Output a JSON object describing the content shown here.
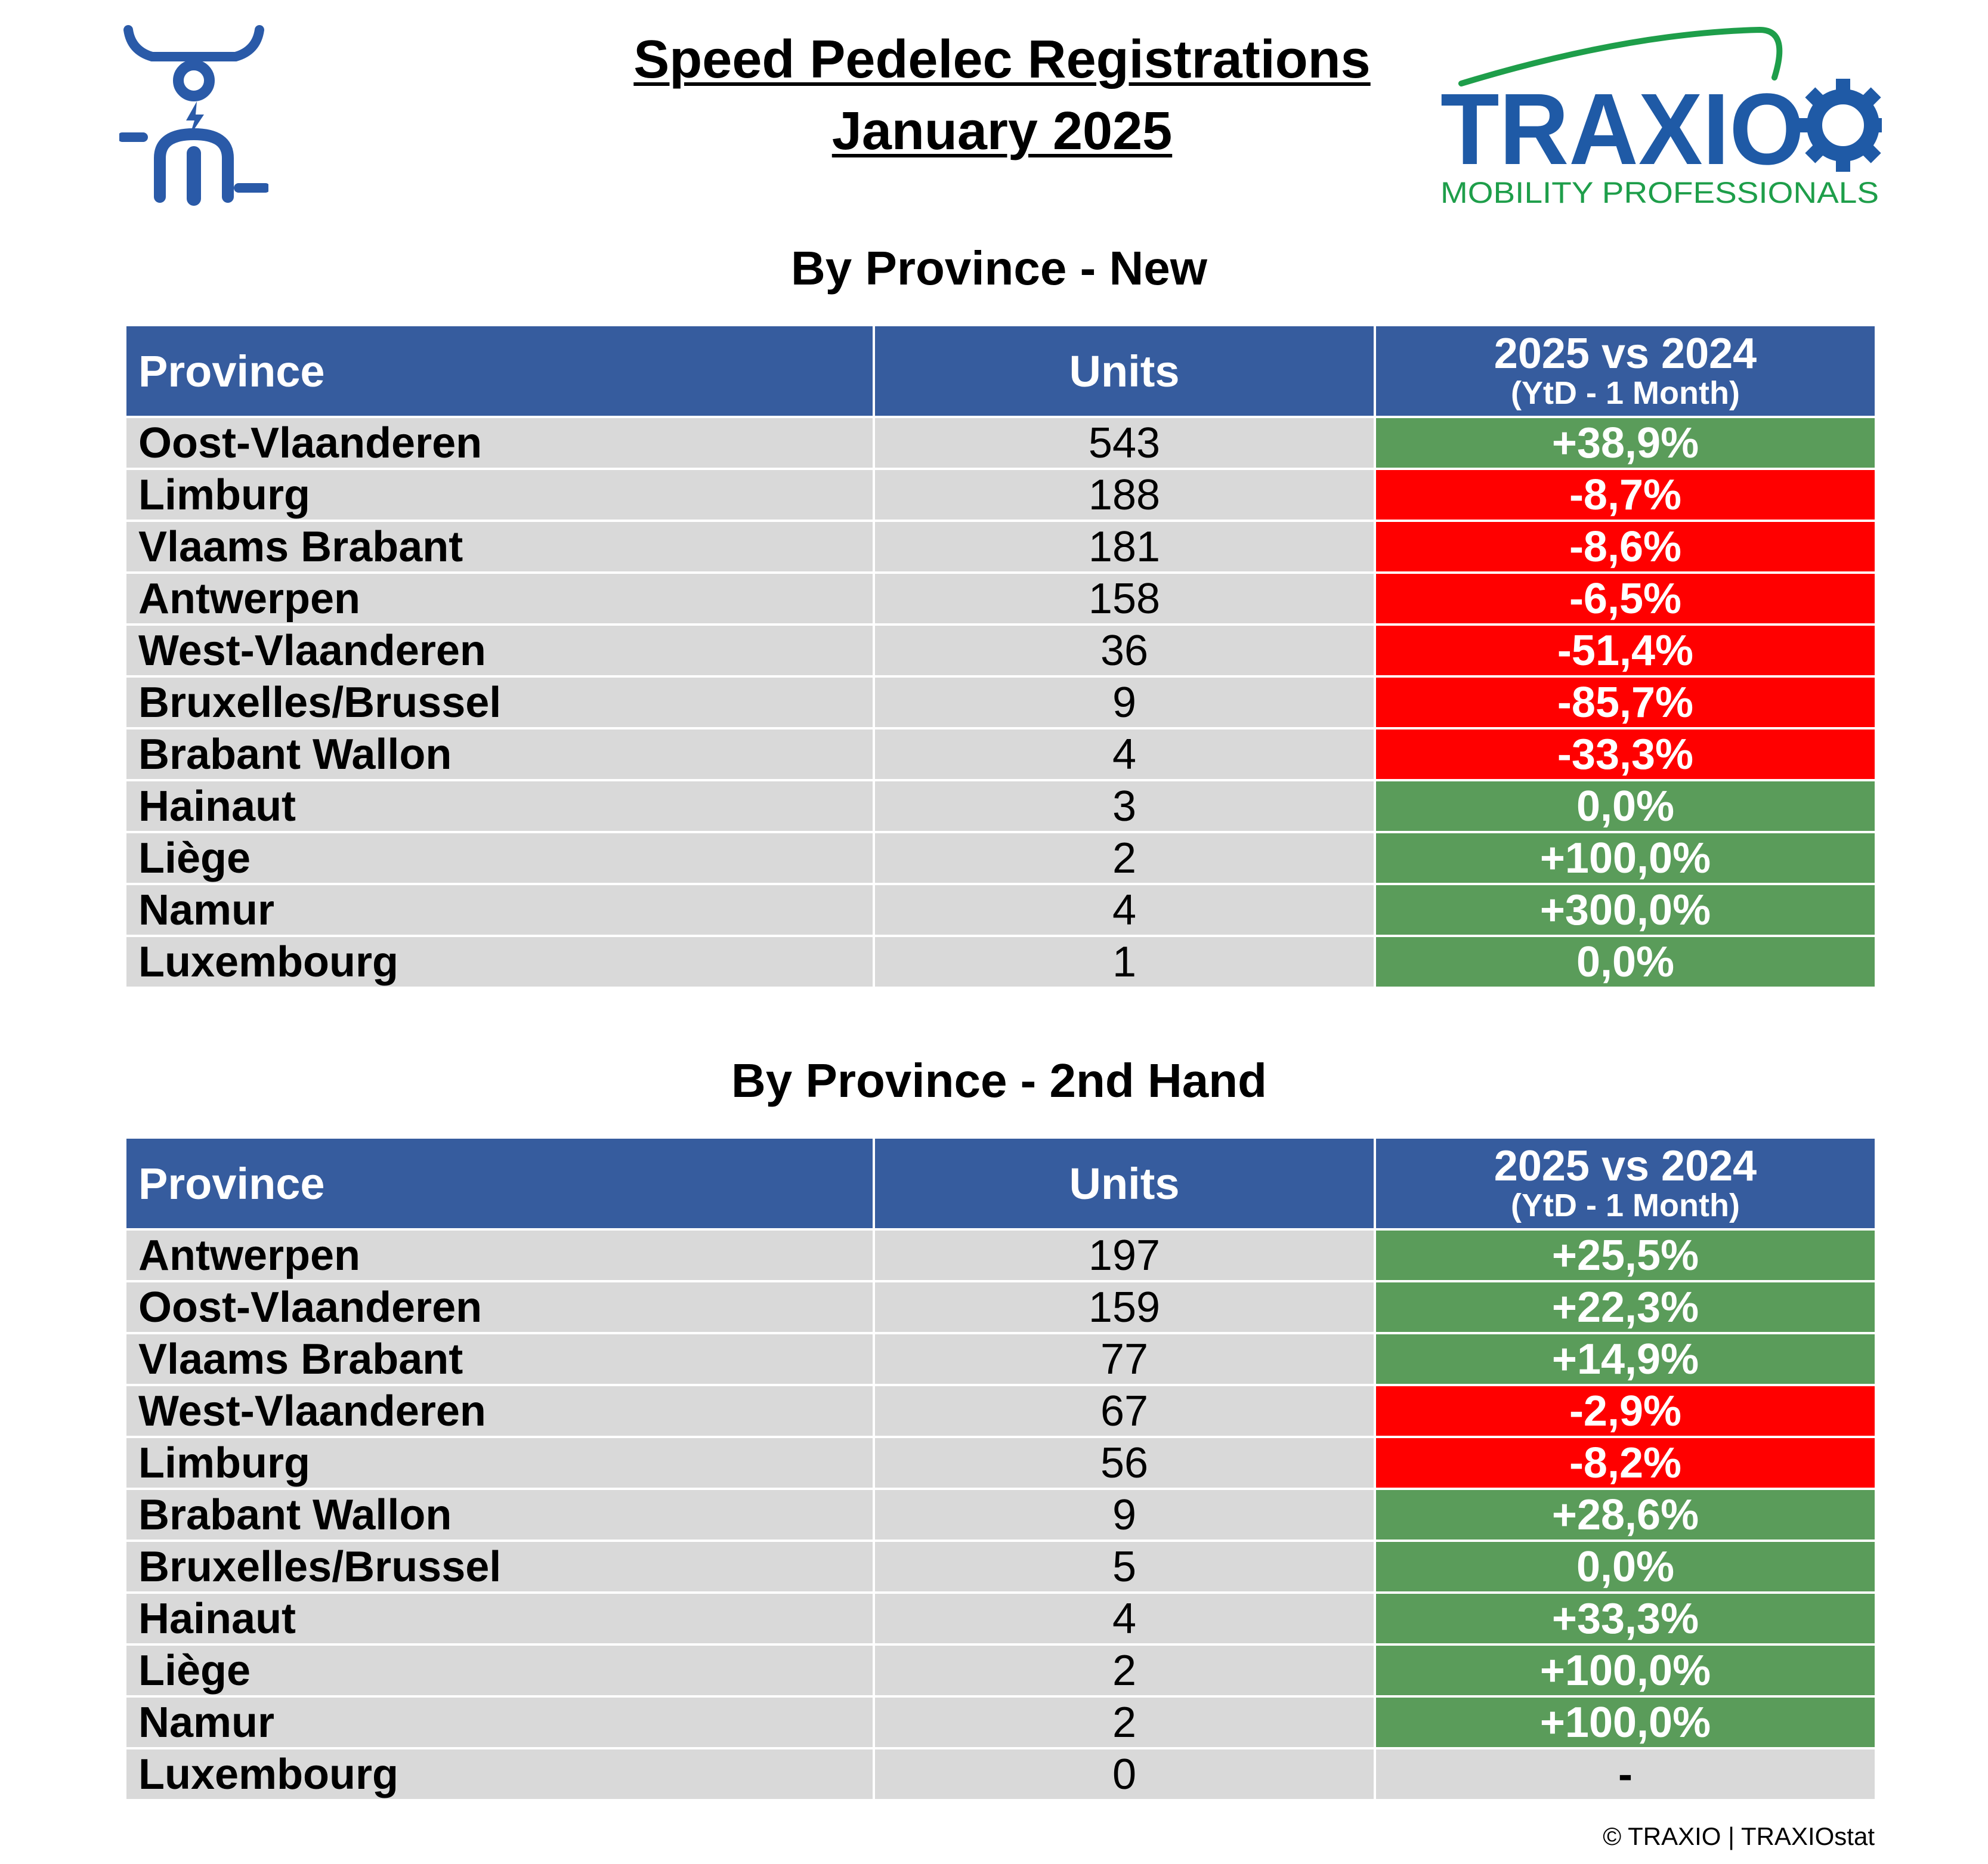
{
  "header": {
    "title_line1": "Speed Pedelec Registrations",
    "title_line2": "January 2025"
  },
  "logo": {
    "brand": "TRAXIO",
    "tagline": "MOBILITY PROFESSIONALS",
    "colors": {
      "blue": "#1f5aa6",
      "green": "#1e9e4a",
      "icon_blue": "#2a5aa8"
    },
    "left_icon": "speed-pedelec-rider-icon"
  },
  "colors": {
    "header_bg": "#365c9e",
    "row_bg": "#d9d9d9",
    "positive": "#5a9c5a",
    "negative": "#ff0000"
  },
  "tables": [
    {
      "title": "By Province - New",
      "headers": {
        "province": "Province",
        "units": "Units",
        "yoy": "2025 vs 2024",
        "yoy_sub": "(YtD - 1 Month)"
      },
      "rows": [
        {
          "province": "Oost-Vlaanderen",
          "units": "543",
          "change": "+38,9%",
          "trend": "pos"
        },
        {
          "province": "Limburg",
          "units": "188",
          "change": "-8,7%",
          "trend": "neg"
        },
        {
          "province": "Vlaams Brabant",
          "units": "181",
          "change": "-8,6%",
          "trend": "neg"
        },
        {
          "province": "Antwerpen",
          "units": "158",
          "change": "-6,5%",
          "trend": "neg"
        },
        {
          "province": "West-Vlaanderen",
          "units": "36",
          "change": "-51,4%",
          "trend": "neg"
        },
        {
          "province": "Bruxelles/Brussel",
          "units": "9",
          "change": "-85,7%",
          "trend": "neg"
        },
        {
          "province": "Brabant Wallon",
          "units": "4",
          "change": "-33,3%",
          "trend": "neg"
        },
        {
          "province": "Hainaut",
          "units": "3",
          "change": "0,0%",
          "trend": "pos"
        },
        {
          "province": "Liège",
          "units": "2",
          "change": "+100,0%",
          "trend": "pos"
        },
        {
          "province": "Namur",
          "units": "4",
          "change": "+300,0%",
          "trend": "pos"
        },
        {
          "province": "Luxembourg",
          "units": "1",
          "change": "0,0%",
          "trend": "pos"
        }
      ]
    },
    {
      "title": "By Province - 2nd Hand",
      "headers": {
        "province": "Province",
        "units": "Units",
        "yoy": "2025 vs 2024",
        "yoy_sub": "(YtD - 1 Month)"
      },
      "rows": [
        {
          "province": "Antwerpen",
          "units": "197",
          "change": "+25,5%",
          "trend": "pos"
        },
        {
          "province": "Oost-Vlaanderen",
          "units": "159",
          "change": "+22,3%",
          "trend": "pos"
        },
        {
          "province": "Vlaams Brabant",
          "units": "77",
          "change": "+14,9%",
          "trend": "pos"
        },
        {
          "province": "West-Vlaanderen",
          "units": "67",
          "change": "-2,9%",
          "trend": "neg"
        },
        {
          "province": "Limburg",
          "units": "56",
          "change": "-8,2%",
          "trend": "neg"
        },
        {
          "province": "Brabant Wallon",
          "units": "9",
          "change": "+28,6%",
          "trend": "pos"
        },
        {
          "province": "Bruxelles/Brussel",
          "units": "5",
          "change": "0,0%",
          "trend": "pos"
        },
        {
          "province": "Hainaut",
          "units": "4",
          "change": "+33,3%",
          "trend": "pos"
        },
        {
          "province": "Liège",
          "units": "2",
          "change": "+100,0%",
          "trend": "pos"
        },
        {
          "province": "Namur",
          "units": "2",
          "change": "+100,0%",
          "trend": "pos"
        },
        {
          "province": "Luxembourg",
          "units": "0",
          "change": "-",
          "trend": "na"
        }
      ]
    }
  ],
  "footer": {
    "copyright": "© TRAXIO | TRAXIOstat"
  }
}
